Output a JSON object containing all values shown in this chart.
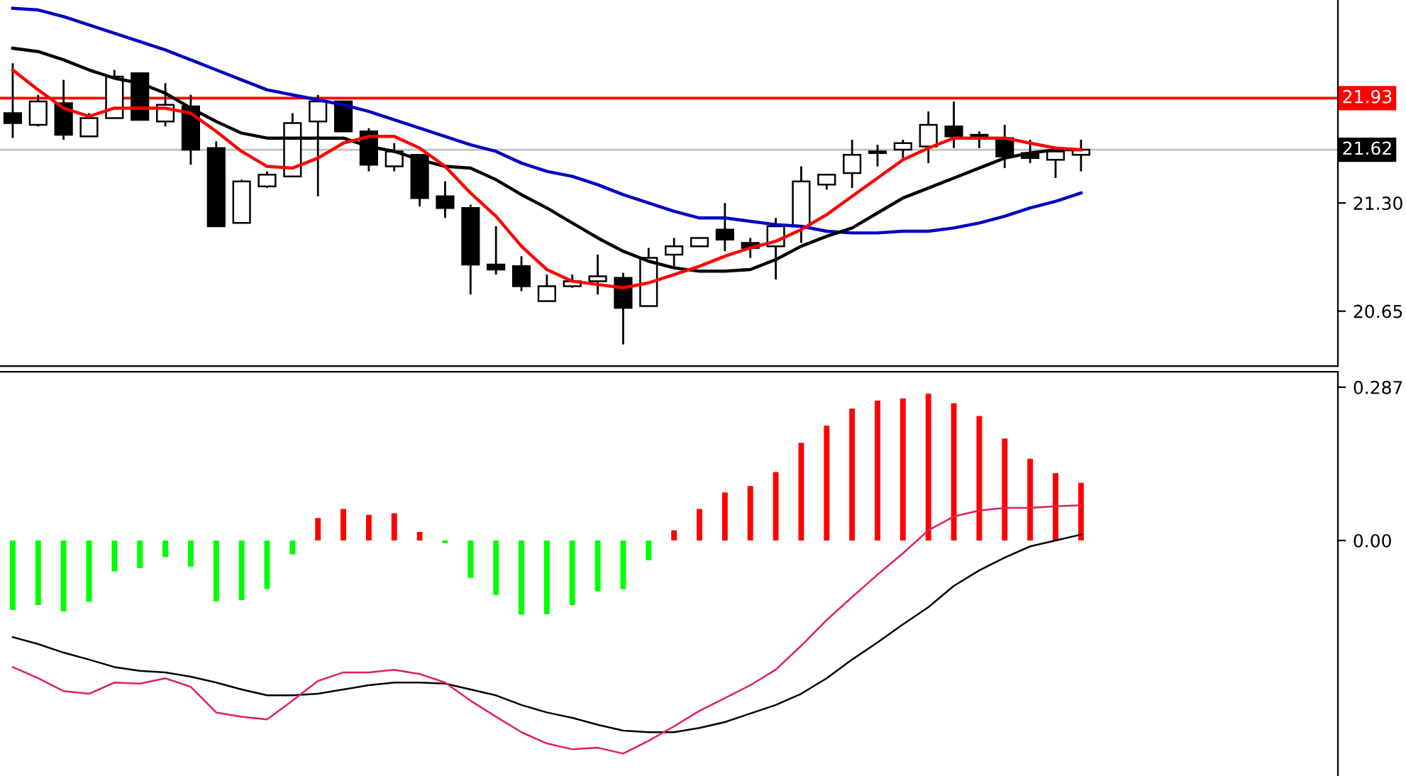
{
  "chart_data": [
    {
      "type": "candlestick",
      "categories": [
        null,
        null,
        null,
        null,
        null,
        null,
        null,
        null,
        null,
        null,
        null,
        null,
        null,
        null,
        null,
        null,
        null,
        null,
        null,
        null,
        null,
        null,
        null,
        null,
        null,
        null,
        null,
        null,
        null,
        null,
        null,
        null,
        null,
        null,
        null,
        null,
        null,
        null,
        null,
        null,
        null,
        null,
        null
      ],
      "ohlc": [
        [
          21.84,
          22.14,
          21.69,
          21.78
        ],
        [
          21.77,
          21.95,
          21.76,
          21.91
        ],
        [
          21.9,
          22.04,
          21.68,
          21.71
        ],
        [
          21.7,
          21.84,
          21.7,
          21.81
        ],
        [
          21.81,
          22.1,
          21.81,
          22.06
        ],
        [
          22.08,
          22.08,
          21.8,
          21.8
        ],
        [
          21.79,
          22.02,
          21.76,
          21.89
        ],
        [
          21.88,
          21.95,
          21.53,
          21.62
        ],
        [
          21.63,
          21.67,
          21.16,
          21.16
        ],
        [
          21.18,
          21.44,
          21.18,
          21.43
        ],
        [
          21.4,
          21.49,
          21.39,
          21.47
        ],
        [
          21.46,
          21.84,
          21.46,
          21.78
        ],
        [
          21.79,
          21.95,
          21.34,
          21.91
        ],
        [
          21.91,
          21.91,
          21.73,
          21.73
        ],
        [
          21.73,
          21.75,
          21.49,
          21.53
        ],
        [
          21.52,
          21.66,
          21.49,
          21.61
        ],
        [
          21.59,
          21.59,
          21.28,
          21.33
        ],
        [
          21.34,
          21.43,
          21.21,
          21.27
        ],
        [
          21.27,
          21.29,
          20.75,
          20.93
        ],
        [
          20.93,
          21.16,
          20.87,
          20.9
        ],
        [
          20.92,
          20.98,
          20.77,
          20.8
        ],
        [
          20.71,
          20.87,
          20.71,
          20.8
        ],
        [
          20.8,
          20.87,
          20.79,
          20.83
        ],
        [
          20.83,
          20.99,
          20.75,
          20.86
        ],
        [
          20.85,
          20.88,
          20.45,
          20.67
        ],
        [
          20.68,
          21.03,
          20.68,
          20.97
        ],
        [
          20.99,
          21.09,
          20.92,
          21.04
        ],
        [
          21.04,
          21.09,
          21.04,
          21.09
        ],
        [
          21.14,
          21.3,
          21.01,
          21.08
        ],
        [
          21.06,
          21.09,
          20.97,
          21.03
        ],
        [
          21.04,
          21.21,
          20.84,
          21.16
        ],
        [
          21.16,
          21.52,
          21.06,
          21.43
        ],
        [
          21.41,
          21.47,
          21.38,
          21.47
        ],
        [
          21.48,
          21.68,
          21.39,
          21.59
        ],
        [
          21.6,
          21.65,
          21.52,
          21.61
        ],
        [
          21.62,
          21.68,
          21.57,
          21.66
        ],
        [
          21.64,
          21.85,
          21.54,
          21.77
        ],
        [
          21.76,
          21.91,
          21.63,
          21.7
        ],
        [
          21.71,
          21.73,
          21.63,
          21.69
        ],
        [
          21.69,
          21.77,
          21.51,
          21.58
        ],
        [
          21.6,
          21.68,
          21.54,
          21.57
        ],
        [
          21.56,
          21.63,
          21.45,
          21.61
        ],
        [
          21.59,
          21.68,
          21.49,
          21.62
        ]
      ],
      "series": [
        {
          "type": "line",
          "color": "#0000c0",
          "values": [
            22.47,
            22.46,
            22.42,
            22.37,
            22.32,
            22.27,
            22.22,
            22.16,
            22.1,
            22.04,
            21.98,
            21.95,
            21.92,
            21.89,
            21.85,
            21.8,
            21.75,
            21.7,
            21.65,
            21.61,
            21.54,
            21.49,
            21.46,
            21.41,
            21.35,
            21.3,
            21.25,
            21.21,
            21.21,
            21.19,
            21.17,
            21.16,
            21.13,
            21.12,
            21.12,
            21.13,
            21.13,
            21.15,
            21.18,
            21.22,
            21.27,
            21.31,
            21.36
          ]
        },
        {
          "type": "line",
          "color": "#000000",
          "values": [
            22.23,
            22.21,
            22.16,
            22.1,
            22.05,
            22.02,
            21.96,
            21.87,
            21.79,
            21.72,
            21.69,
            21.69,
            21.69,
            21.69,
            21.64,
            21.61,
            21.56,
            21.52,
            21.51,
            21.44,
            21.35,
            21.27,
            21.18,
            21.09,
            21.01,
            20.95,
            20.91,
            20.89,
            20.89,
            20.9,
            20.96,
            21.04,
            21.1,
            21.15,
            21.24,
            21.33,
            21.39,
            21.45,
            21.51,
            21.57,
            21.6,
            21.62,
            21.62
          ]
        },
        {
          "type": "line",
          "color": "#ff0000",
          "values": [
            22.1,
            21.98,
            21.87,
            21.82,
            21.87,
            21.87,
            21.87,
            21.84,
            21.73,
            21.61,
            21.52,
            21.51,
            21.57,
            21.66,
            21.7,
            21.7,
            21.63,
            21.52,
            21.36,
            21.22,
            21.04,
            20.9,
            20.83,
            20.81,
            20.79,
            20.82,
            20.87,
            20.92,
            20.98,
            21.03,
            21.07,
            21.14,
            21.23,
            21.34,
            21.45,
            21.56,
            21.63,
            21.69,
            21.69,
            21.69,
            21.66,
            21.63,
            21.62
          ]
        }
      ],
      "ylim": [
        20.32,
        22.52
      ],
      "yticks": [
        {
          "value": 21.3,
          "label": "21.30"
        },
        {
          "value": 20.65,
          "label": "20.65"
        }
      ],
      "ref_lines": [
        {
          "axis": "y",
          "value": 21.93,
          "label": "21.93",
          "color": "#ff0000"
        },
        {
          "axis": "y",
          "value": 21.62,
          "label": "21.62",
          "color": "#c0c0c0"
        }
      ],
      "tick_labels": "y"
    },
    {
      "type": "bar",
      "categories": [
        null,
        null,
        null,
        null,
        null,
        null,
        null,
        null,
        null,
        null,
        null,
        null,
        null,
        null,
        null,
        null,
        null,
        null,
        null,
        null,
        null,
        null,
        null,
        null,
        null,
        null,
        null,
        null,
        null,
        null,
        null,
        null,
        null,
        null,
        null,
        null,
        null,
        null,
        null,
        null,
        null,
        null,
        null
      ],
      "series": [
        {
          "type": "bar",
          "values": [
            -0.13,
            -0.121,
            -0.133,
            -0.115,
            -0.058,
            -0.052,
            -0.031,
            -0.049,
            -0.114,
            -0.112,
            -0.091,
            -0.026,
            0.042,
            0.059,
            0.048,
            0.051,
            0.016,
            -0.005,
            -0.07,
            -0.102,
            -0.139,
            -0.138,
            -0.121,
            -0.095,
            -0.091,
            -0.037,
            0.019,
            0.059,
            0.09,
            0.102,
            0.128,
            0.183,
            0.215,
            0.247,
            0.262,
            0.266,
            0.275,
            0.257,
            0.233,
            0.191,
            0.153,
            0.126,
            0.108
          ],
          "colors": [
            "#00ff00",
            "#00ff00",
            "#00ff00",
            "#00ff00",
            "#00ff00",
            "#00ff00",
            "#00ff00",
            "#00ff00",
            "#00ff00",
            "#00ff00",
            "#00ff00",
            "#00ff00",
            "#ff0000",
            "#ff0000",
            "#ff0000",
            "#ff0000",
            "#ff0000",
            "#00ff00",
            "#00ff00",
            "#00ff00",
            "#00ff00",
            "#00ff00",
            "#00ff00",
            "#00ff00",
            "#00ff00",
            "#00ff00",
            "#ff0000",
            "#ff0000",
            "#ff0000",
            "#ff0000",
            "#ff0000",
            "#ff0000",
            "#ff0000",
            "#ff0000",
            "#ff0000",
            "#ff0000",
            "#ff0000",
            "#ff0000",
            "#ff0000",
            "#ff0000",
            "#ff0000",
            "#ff0000",
            "#ff0000"
          ]
        },
        {
          "type": "line",
          "color": "#000000",
          "values": [
            -0.181,
            -0.194,
            -0.21,
            -0.223,
            -0.237,
            -0.244,
            -0.247,
            -0.255,
            -0.266,
            -0.279,
            -0.29,
            -0.29,
            -0.287,
            -0.279,
            -0.271,
            -0.266,
            -0.266,
            -0.268,
            -0.279,
            -0.29,
            -0.308,
            -0.322,
            -0.332,
            -0.345,
            -0.356,
            -0.359,
            -0.359,
            -0.351,
            -0.34,
            -0.324,
            -0.308,
            -0.287,
            -0.258,
            -0.223,
            -0.191,
            -0.157,
            -0.125,
            -0.085,
            -0.056,
            -0.032,
            -0.011,
            0.0,
            0.011
          ]
        },
        {
          "type": "line",
          "color": "#e0205a",
          "values": [
            -0.237,
            -0.258,
            -0.282,
            -0.287,
            -0.266,
            -0.268,
            -0.258,
            -0.274,
            -0.322,
            -0.33,
            -0.335,
            -0.3,
            -0.263,
            -0.247,
            -0.247,
            -0.242,
            -0.25,
            -0.266,
            -0.3,
            -0.33,
            -0.359,
            -0.38,
            -0.391,
            -0.388,
            -0.399,
            -0.375,
            -0.348,
            -0.319,
            -0.295,
            -0.271,
            -0.242,
            -0.197,
            -0.149,
            -0.106,
            -0.064,
            -0.024,
            0.019,
            0.045,
            0.056,
            0.061,
            0.061,
            0.064,
            0.066
          ]
        }
      ],
      "ylim": [
        -0.441,
        0.316
      ],
      "yticks": [
        {
          "value": 0.287,
          "label": "0.287"
        },
        {
          "value": 0,
          "label": "0.00"
        }
      ],
      "tick_labels": "y"
    }
  ]
}
